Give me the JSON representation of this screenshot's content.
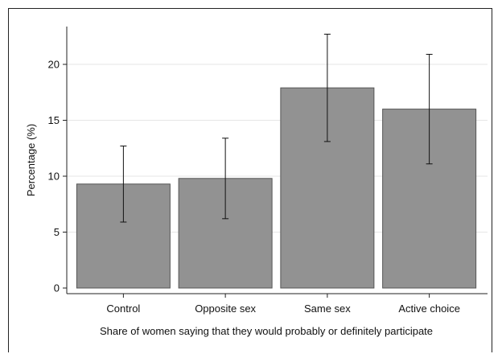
{
  "chart_data": {
    "type": "bar",
    "categories": [
      "Control",
      "Opposite sex",
      "Same sex",
      "Active choice"
    ],
    "values": [
      9.3,
      9.8,
      17.9,
      16.0
    ],
    "error_low": [
      5.9,
      6.2,
      13.1,
      11.1
    ],
    "error_high": [
      12.7,
      13.4,
      22.7,
      20.9
    ],
    "xlabel": "Share of women saying that they would probably or definitely participate",
    "ylabel": "Percentage (%)",
    "ylim": [
      0,
      25
    ],
    "yticks": [
      0,
      5,
      10,
      15,
      20
    ],
    "grid": true,
    "colors": {
      "bar_fill": "#929292",
      "bar_stroke": "#555555",
      "grid": "#e6e6e6",
      "axis": "#222222",
      "error": "#111111"
    }
  }
}
